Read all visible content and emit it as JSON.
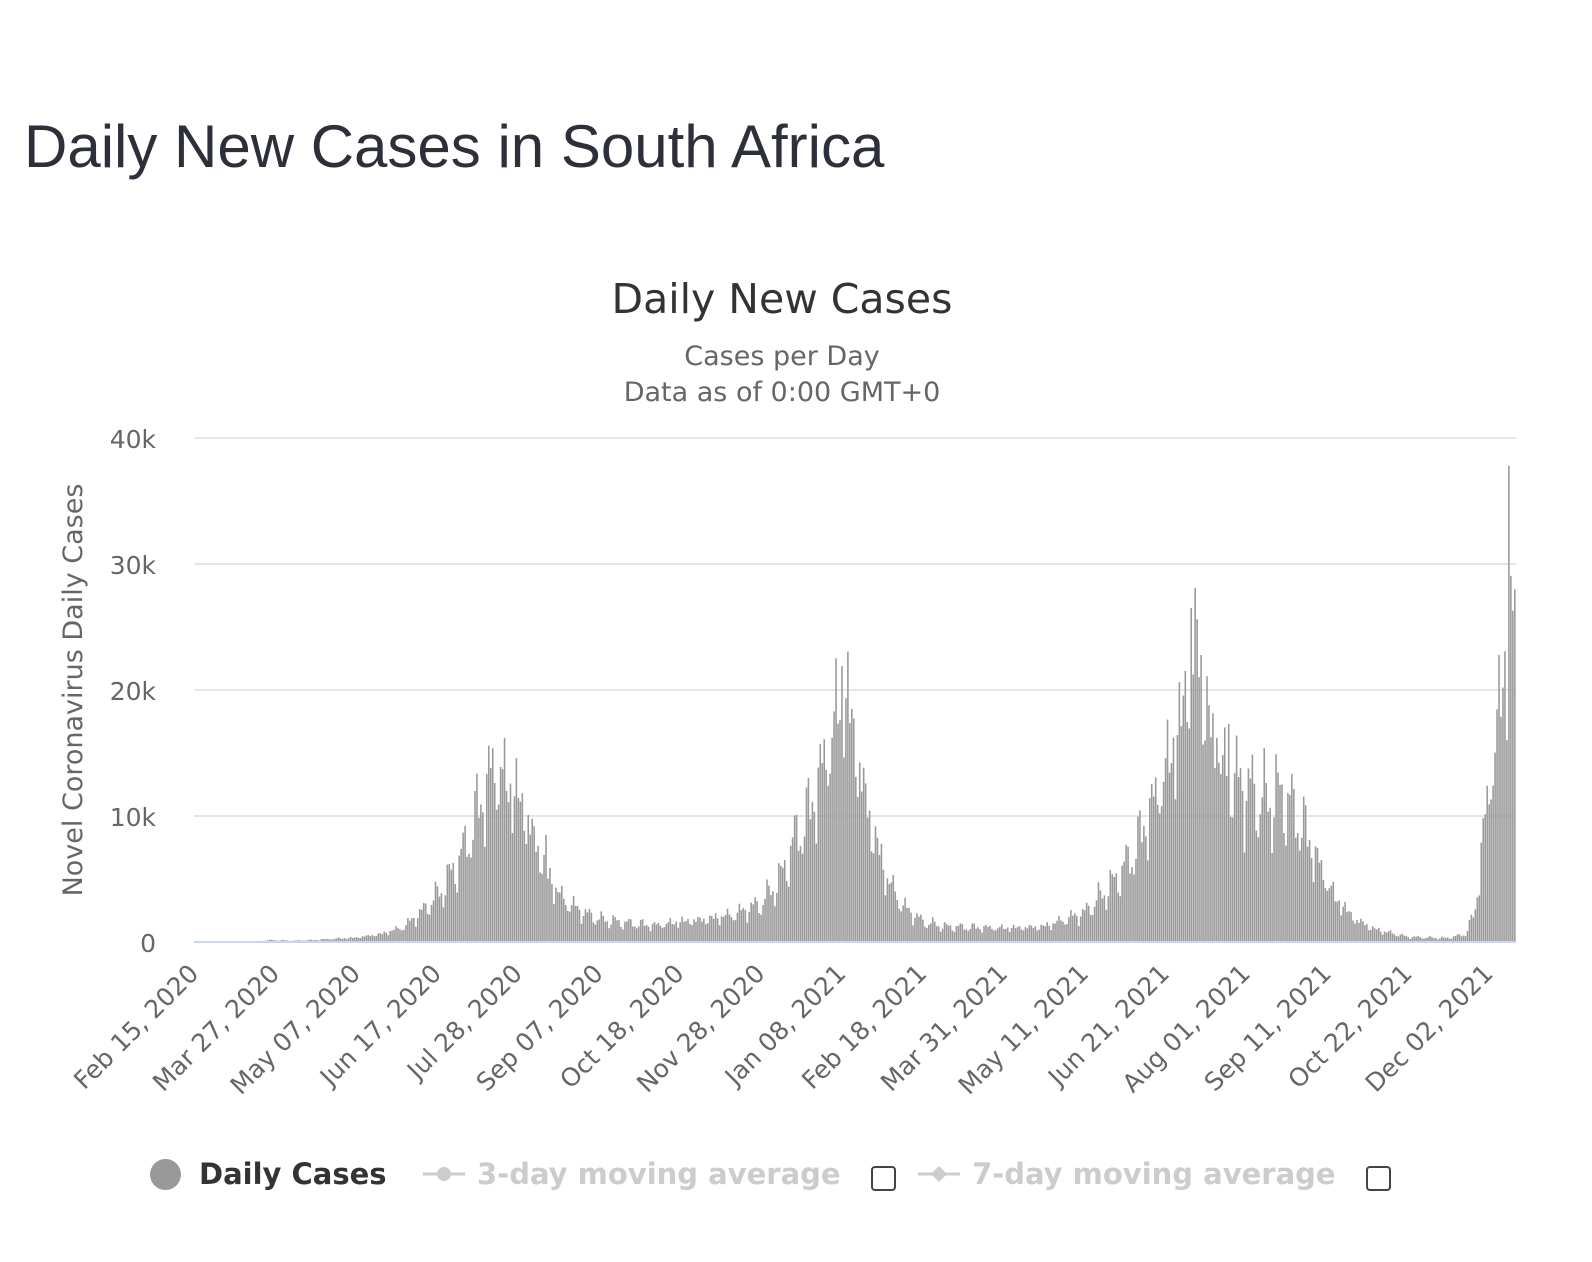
{
  "page": {
    "title": "Daily New Cases in South Africa"
  },
  "chart_data": {
    "type": "bar",
    "title": "Daily New Cases",
    "subtitle": "Cases per Day",
    "subtitle2": "Data as of 0:00 GMT+0",
    "ylabel": "Novel Coronavirus Daily Cases",
    "ylim": [
      0,
      40000
    ],
    "yticks": [
      {
        "value": 0,
        "label": "0"
      },
      {
        "value": 10000,
        "label": "10k"
      },
      {
        "value": 20000,
        "label": "20k"
      },
      {
        "value": 30000,
        "label": "30k"
      },
      {
        "value": 40000,
        "label": "40k"
      }
    ],
    "x_start": "2020-02-15",
    "x_end": "2021-12-15",
    "xticks": [
      "Feb 15, 2020",
      "Mar 27, 2020",
      "May 07, 2020",
      "Jun 17, 2020",
      "Jul 28, 2020",
      "Sep 07, 2020",
      "Oct 18, 2020",
      "Nov 28, 2020",
      "Jan 08, 2021",
      "Feb 18, 2021",
      "Mar 31, 2021",
      "May 11, 2021",
      "Jun 21, 2021",
      "Aug 01, 2021",
      "Sep 11, 2021",
      "Oct 22, 2021",
      "Dec 02, 2021"
    ],
    "grid": true,
    "bar_color": "#999999",
    "series": [
      {
        "name": "Daily Cases",
        "keypoints": [
          [
            "2020-02-15",
            0
          ],
          [
            "2020-03-05",
            0
          ],
          [
            "2020-03-15",
            30
          ],
          [
            "2020-03-25",
            150
          ],
          [
            "2020-04-05",
            100
          ],
          [
            "2020-04-15",
            150
          ],
          [
            "2020-04-25",
            250
          ],
          [
            "2020-05-07",
            350
          ],
          [
            "2020-05-20",
            650
          ],
          [
            "2020-05-31",
            1200
          ],
          [
            "2020-06-10",
            2500
          ],
          [
            "2020-06-20",
            4200
          ],
          [
            "2020-06-30",
            7000
          ],
          [
            "2020-07-08",
            10500
          ],
          [
            "2020-07-15",
            13500
          ],
          [
            "2020-07-22",
            12500
          ],
          [
            "2020-07-28",
            11500
          ],
          [
            "2020-08-05",
            8200
          ],
          [
            "2020-08-12",
            5200
          ],
          [
            "2020-08-20",
            3300
          ],
          [
            "2020-08-30",
            2300
          ],
          [
            "2020-09-07",
            1800
          ],
          [
            "2020-09-20",
            1500
          ],
          [
            "2020-10-05",
            1300
          ],
          [
            "2020-10-18",
            1600
          ],
          [
            "2020-11-01",
            1800
          ],
          [
            "2020-11-15",
            2200
          ],
          [
            "2020-11-28",
            3000
          ],
          [
            "2020-12-08",
            5000
          ],
          [
            "2020-12-15",
            8000
          ],
          [
            "2020-12-22",
            10000
          ],
          [
            "2020-12-29",
            13500
          ],
          [
            "2021-01-04",
            17000
          ],
          [
            "2021-01-09",
            20500
          ],
          [
            "2021-01-14",
            16000
          ],
          [
            "2021-01-19",
            12000
          ],
          [
            "2021-01-24",
            8500
          ],
          [
            "2021-01-31",
            5000
          ],
          [
            "2021-02-08",
            2800
          ],
          [
            "2021-02-18",
            1600
          ],
          [
            "2021-03-01",
            1200
          ],
          [
            "2021-03-31",
            1100
          ],
          [
            "2021-04-20",
            1200
          ],
          [
            "2021-05-11",
            2300
          ],
          [
            "2021-05-25",
            4500
          ],
          [
            "2021-06-05",
            7000
          ],
          [
            "2021-06-15",
            11000
          ],
          [
            "2021-06-21",
            13500
          ],
          [
            "2021-06-28",
            17000
          ],
          [
            "2021-07-03",
            21000
          ],
          [
            "2021-07-06",
            24000
          ],
          [
            "2021-07-10",
            20500
          ],
          [
            "2021-07-15",
            15000
          ],
          [
            "2021-07-22",
            13000
          ],
          [
            "2021-08-01",
            12000
          ],
          [
            "2021-08-10",
            11000
          ],
          [
            "2021-08-20",
            11500
          ],
          [
            "2021-08-30",
            9000
          ],
          [
            "2021-09-07",
            6000
          ],
          [
            "2021-09-15",
            3500
          ],
          [
            "2021-09-25",
            1800
          ],
          [
            "2021-10-05",
            1000
          ],
          [
            "2021-10-22",
            400
          ],
          [
            "2021-11-10",
            300
          ],
          [
            "2021-11-20",
            600
          ],
          [
            "2021-11-25",
            2500
          ],
          [
            "2021-11-29",
            8500
          ],
          [
            "2021-12-02",
            12000
          ],
          [
            "2021-12-06",
            17000
          ],
          [
            "2021-12-10",
            22000
          ],
          [
            "2021-12-15",
            26000
          ]
        ],
        "spikes": [
          [
            "2020-07-19",
            13900
          ],
          [
            "2020-08-11",
            8500
          ],
          [
            "2021-01-08",
            21900
          ],
          [
            "2021-01-13",
            18500
          ],
          [
            "2021-07-04",
            26500
          ],
          [
            "2021-07-23",
            17300
          ],
          [
            "2021-07-17",
            16200
          ],
          [
            "2021-12-12",
            37800
          ],
          [
            "2021-12-14",
            26300
          ]
        ]
      },
      {
        "name": "3-day moving average"
      },
      {
        "name": "7-day moving average"
      }
    ]
  }
}
